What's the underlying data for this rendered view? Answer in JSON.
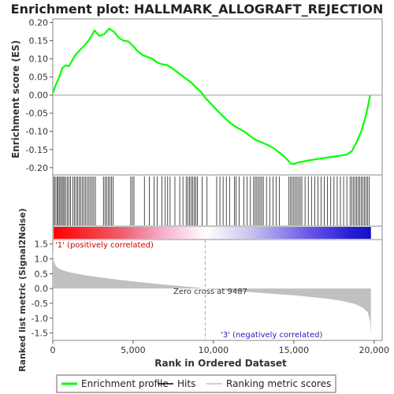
{
  "chart_data": {
    "type": "line",
    "title": "Enrichment plot: HALLMARK_ALLOGRAFT_REJECTION",
    "xlabel": "Rank in Ordered Dataset",
    "xlim": [
      0,
      20500
    ],
    "x_ticks": [
      0,
      5000,
      10000,
      15000,
      20000
    ],
    "x_tick_labels": [
      "0",
      "5,000",
      "10,000",
      "15,000",
      "20,000"
    ],
    "panels": {
      "es": {
        "ylabel": "Enrichment score (ES)",
        "ylim": [
          -0.22,
          0.21
        ],
        "y_ticks": [
          0.2,
          0.15,
          0.1,
          0.05,
          0.0,
          -0.05,
          -0.1,
          -0.15,
          -0.2
        ],
        "y_tick_labels": [
          "0.20",
          "0.15",
          "0.10",
          "0.05",
          "0.00",
          "-0.05",
          "-0.10",
          "-0.15",
          "-0.20"
        ],
        "series": {
          "color": "#00ff00",
          "x": [
            0,
            200,
            400,
            600,
            800,
            1000,
            1200,
            1400,
            1700,
            2000,
            2300,
            2600,
            2900,
            3200,
            3500,
            3800,
            4100,
            4400,
            4700,
            5000,
            5300,
            5600,
            5900,
            6200,
            6500,
            6800,
            7100,
            7400,
            7700,
            8000,
            8300,
            8600,
            8900,
            9200,
            9500,
            9800,
            10100,
            10400,
            10700,
            11000,
            11300,
            11600,
            11900,
            12200,
            12500,
            12800,
            13100,
            13400,
            13700,
            14000,
            14300,
            14600,
            14800,
            15000,
            15300,
            15600,
            15900,
            16200,
            16500,
            16800,
            17100,
            17400,
            17700,
            18000,
            18300,
            18600,
            18900,
            19200,
            19400,
            19600,
            19750
          ],
          "y": [
            0.005,
            0.03,
            0.05,
            0.075,
            0.082,
            0.08,
            0.095,
            0.11,
            0.125,
            0.138,
            0.155,
            0.178,
            0.163,
            0.168,
            0.183,
            0.175,
            0.158,
            0.15,
            0.148,
            0.135,
            0.12,
            0.11,
            0.105,
            0.1,
            0.09,
            0.085,
            0.083,
            0.075,
            0.065,
            0.055,
            0.045,
            0.035,
            0.022,
            0.01,
            -0.008,
            -0.022,
            -0.036,
            -0.05,
            -0.063,
            -0.075,
            -0.085,
            -0.093,
            -0.1,
            -0.11,
            -0.12,
            -0.127,
            -0.132,
            -0.138,
            -0.145,
            -0.155,
            -0.165,
            -0.178,
            -0.188,
            -0.19,
            -0.185,
            -0.183,
            -0.18,
            -0.178,
            -0.176,
            -0.174,
            -0.172,
            -0.17,
            -0.168,
            -0.166,
            -0.164,
            -0.155,
            -0.13,
            -0.1,
            -0.07,
            -0.035,
            0.0
          ]
        }
      },
      "hits": {
        "positions": [
          80,
          150,
          250,
          320,
          400,
          480,
          560,
          640,
          720,
          800,
          900,
          1000,
          1100,
          1250,
          1350,
          1450,
          1550,
          1650,
          1750,
          1850,
          1950,
          2050,
          2150,
          2250,
          2350,
          2450,
          2550,
          2650,
          3150,
          3250,
          3350,
          3450,
          3550,
          3650,
          3750,
          4850,
          4950,
          5050,
          5700,
          6000,
          6300,
          6500,
          6800,
          7000,
          7150,
          7300,
          7600,
          7900,
          8100,
          8300,
          8400,
          8500,
          8600,
          8700,
          8800,
          8900,
          9000,
          9300,
          9600,
          10200,
          10400,
          10600,
          10800,
          11000,
          11300,
          11400,
          11600,
          11900,
          12100,
          12300,
          12500,
          12600,
          12700,
          12800,
          12900,
          13000,
          13100,
          13300,
          13500,
          13700,
          13900,
          14100,
          14700,
          14800,
          14900,
          15000,
          15100,
          15200,
          15300,
          15400,
          15500,
          15700,
          15900,
          16100,
          16300,
          16500,
          16700,
          16900,
          17100,
          17300,
          17500,
          17700,
          17900,
          18100,
          18300,
          18500,
          18600,
          18700,
          18800,
          18900,
          19000,
          19100,
          19200,
          19300,
          19400,
          19500,
          19600,
          19700
        ]
      },
      "ranked_metric": {
        "ylabel": "Ranked list metric (Signal2Noise)",
        "ylim": [
          -1.75,
          1.65
        ],
        "y_ticks": [
          1.5,
          1.0,
          0.5,
          0.0,
          -0.5,
          -1.0,
          -1.5
        ],
        "y_tick_labels": [
          "1.5",
          "1.0",
          "0.5",
          "0.0",
          "-0.5",
          "-1.0",
          "-1.5"
        ],
        "fill_color": "#c0c0c0",
        "x": [
          0,
          50,
          150,
          300,
          600,
          1000,
          2000,
          3000,
          4000,
          5000,
          6000,
          7000,
          8000,
          9000,
          9487,
          10000,
          11000,
          12000,
          13000,
          14000,
          15000,
          16000,
          17000,
          18000,
          18800,
          19300,
          19600,
          19750,
          19800
        ],
        "y": [
          1.3,
          0.95,
          0.8,
          0.7,
          0.62,
          0.55,
          0.45,
          0.37,
          0.3,
          0.24,
          0.18,
          0.13,
          0.08,
          0.03,
          0.0,
          -0.03,
          -0.07,
          -0.11,
          -0.15,
          -0.19,
          -0.23,
          -0.28,
          -0.34,
          -0.42,
          -0.52,
          -0.65,
          -0.8,
          -1.1,
          -1.55
        ],
        "zero_cross_label": "Zero cross at 9487",
        "zero_cross": 9487,
        "pos_label": "'1' (positively correlated)",
        "neg_label": "'3' (negatively correlated)"
      }
    },
    "legend": {
      "placement": "bottom",
      "items": [
        {
          "label": "Enrichment profile",
          "color": "#00ff00",
          "kind": "line"
        },
        {
          "label": "Hits",
          "color": "#000000",
          "kind": "line"
        },
        {
          "label": "Ranking metric scores",
          "color": "#c0c0c0",
          "kind": "line"
        }
      ]
    }
  }
}
